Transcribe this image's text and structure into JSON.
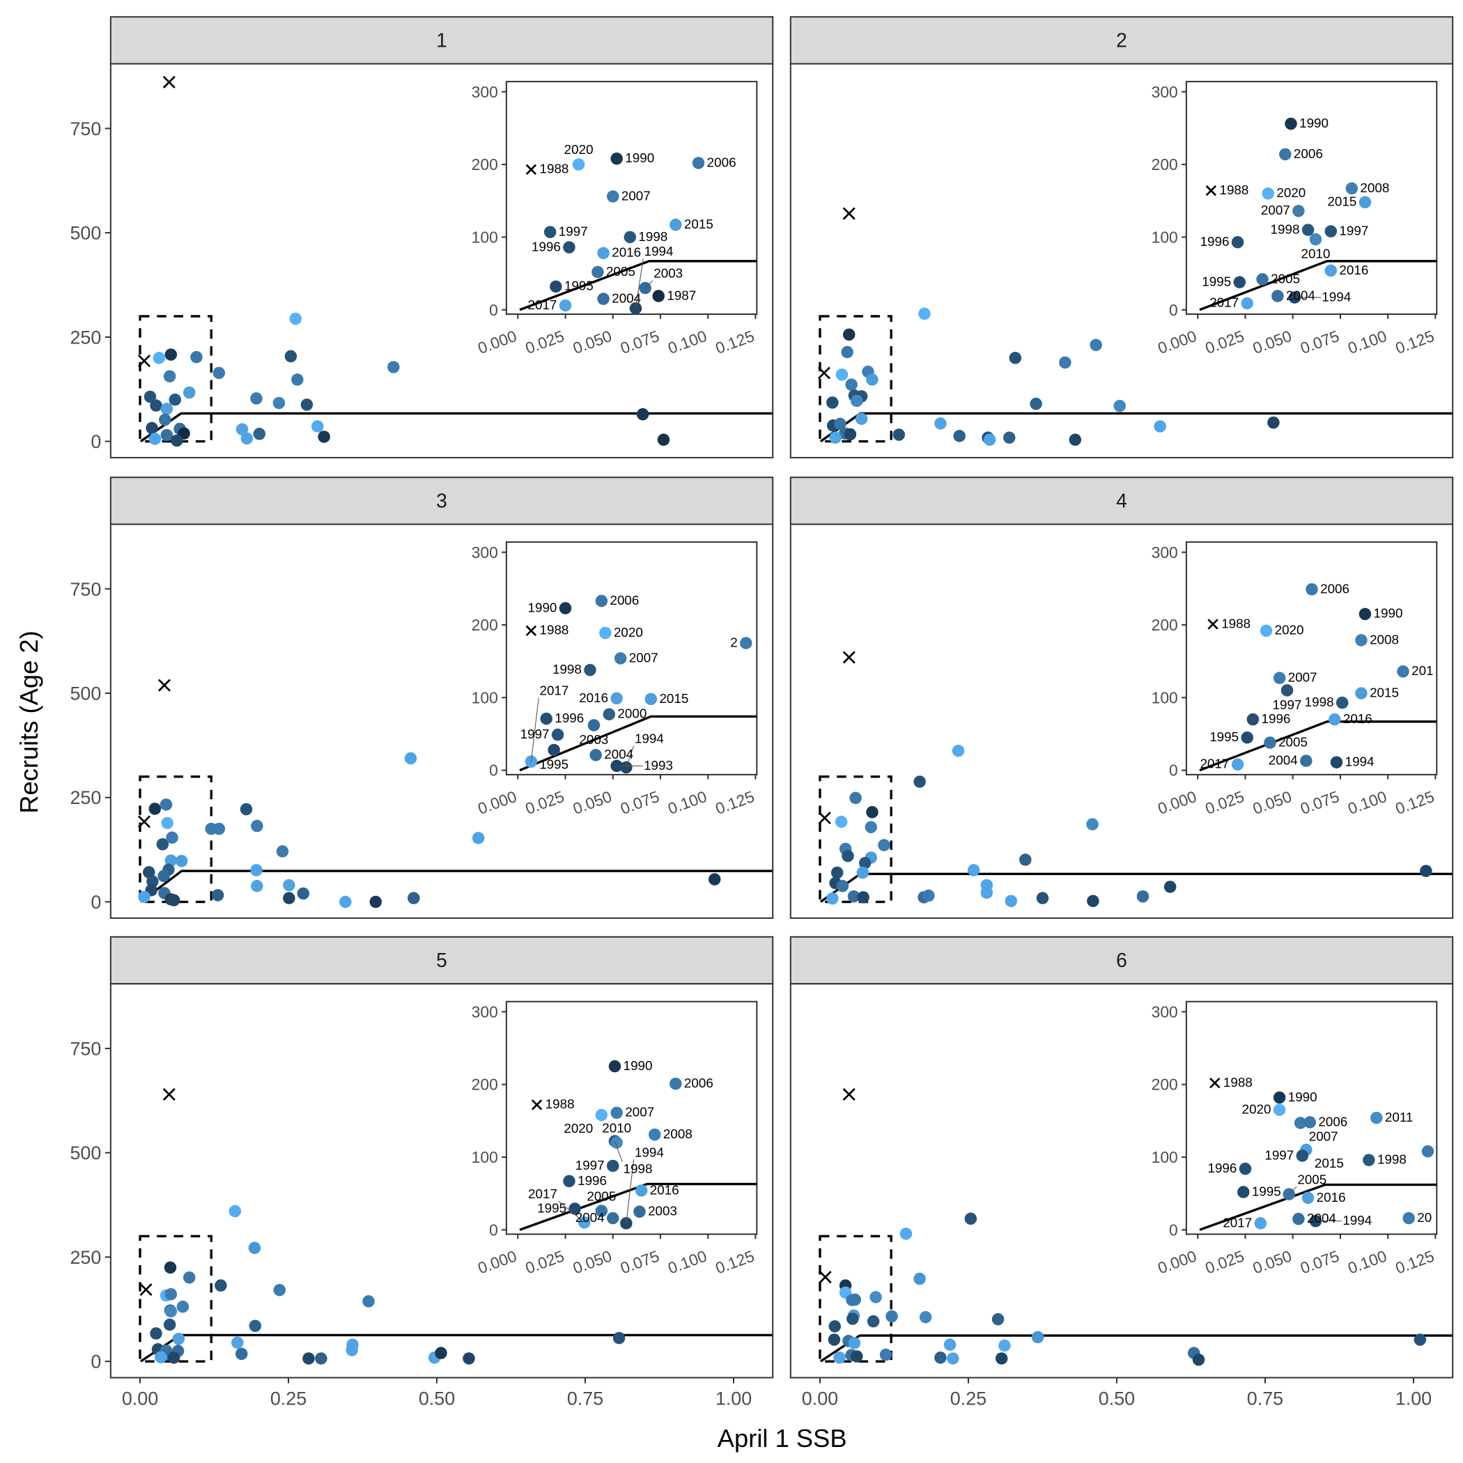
{
  "labels": {
    "xlabel": "April 1 SSB",
    "ylabel": "Recruits (Age 2)"
  },
  "colors": {
    "low": "#132B43",
    "high": "#56B1F7",
    "strip": "#D9D9D9",
    "line": "#000000"
  },
  "year_range": [
    1987,
    2020
  ],
  "main_axes": {
    "xlim": [
      -0.0495,
      1.066
    ],
    "ylim": [
      -39,
      905
    ],
    "xticks": [
      0,
      0.25,
      0.5,
      0.75,
      1.0
    ],
    "xtick_labels": [
      "0.00",
      "0.25",
      "0.50",
      "0.75",
      "1.00"
    ],
    "yticks": [
      0,
      250,
      500,
      750
    ],
    "ytick_labels": [
      "0",
      "250",
      "500",
      "750"
    ],
    "box": {
      "x": [
        0,
        0.12
      ],
      "y": [
        0,
        300
      ]
    }
  },
  "inset_axes": {
    "xlim": [
      -0.006,
      0.1257
    ],
    "ylim": [
      -6,
      314
    ],
    "xticks": [
      0,
      0.025,
      0.05,
      0.075,
      0.1,
      0.125
    ],
    "xtick_labels": [
      "0.000",
      "0.025",
      "0.050",
      "0.075",
      "0.100",
      "0.125"
    ],
    "yticks": [
      0,
      100,
      200,
      300
    ],
    "ytick_labels": [
      "0",
      "100",
      "200",
      "300"
    ]
  },
  "chart_data": [
    {
      "type": "scatter",
      "panel": "1",
      "fit_knee": [
        0.069,
        67
      ],
      "main_cross": [
        0.049,
        861
      ],
      "inset_cross": [
        "1988",
        0.007,
        193
      ],
      "inset_points": [
        [
          "2020",
          0.032,
          200
        ],
        [
          "1990",
          0.052,
          208
        ],
        [
          "2006",
          0.095,
          202
        ],
        [
          "2007",
          0.05,
          156
        ],
        [
          "2015",
          0.083,
          117
        ],
        [
          "1997",
          0.017,
          107
        ],
        [
          "1998",
          0.059,
          100
        ],
        [
          "1996",
          0.027,
          86
        ],
        [
          "2016",
          0.045,
          78
        ],
        [
          "2005",
          0.042,
          52
        ],
        [
          "1995",
          0.02,
          32
        ],
        [
          "2003",
          0.067,
          30
        ],
        [
          "1987",
          0.074,
          19
        ],
        [
          "2004",
          0.045,
          15
        ],
        [
          "2017",
          0.025,
          6
        ],
        [
          "1994",
          0.062,
          2
        ]
      ],
      "main_points": [
        [
          0.133,
          164,
          0.6
        ],
        [
          0.196,
          103,
          0.6
        ],
        [
          0.234,
          92,
          0.65
        ],
        [
          0.254,
          204,
          0.3
        ],
        [
          0.262,
          294,
          1
        ],
        [
          0.265,
          148,
          0.6
        ],
        [
          0.281,
          88,
          0.3
        ],
        [
          0.299,
          36,
          0.95
        ],
        [
          0.31,
          11,
          0.1
        ],
        [
          0.172,
          29,
          0.9
        ],
        [
          0.18,
          7,
          0.9
        ],
        [
          0.201,
          18,
          0.4
        ],
        [
          0.427,
          178,
          0.6
        ],
        [
          0.847,
          65,
          0.1
        ],
        [
          0.882,
          4,
          0.05
        ]
      ]
    },
    {
      "type": "scatter",
      "panel": "2",
      "fit_knee": [
        0.068,
        67
      ],
      "main_cross": [
        0.049,
        546
      ],
      "inset_cross": [
        "1988",
        0.007,
        164
      ],
      "inset_points": [
        [
          "1990",
          0.049,
          256
        ],
        [
          "2006",
          0.046,
          214
        ],
        [
          "2020",
          0.037,
          160
        ],
        [
          "2008",
          0.081,
          167
        ],
        [
          "2015",
          0.088,
          148
        ],
        [
          "2007",
          0.053,
          136
        ],
        [
          "1998",
          0.058,
          110
        ],
        [
          "1997",
          0.07,
          108
        ],
        [
          "2010",
          0.062,
          97
        ],
        [
          "1996",
          0.021,
          93
        ],
        [
          "2016",
          0.07,
          54
        ],
        [
          "1995",
          0.022,
          38
        ],
        [
          "2005",
          0.034,
          42
        ],
        [
          "2004",
          0.042,
          19
        ],
        [
          "1994",
          0.051,
          17
        ],
        [
          "2017",
          0.026,
          9
        ]
      ],
      "main_points": [
        [
          0.176,
          306,
          1
        ],
        [
          0.133,
          16,
          0.3
        ],
        [
          0.203,
          43,
          0.9
        ],
        [
          0.235,
          13,
          0.4
        ],
        [
          0.283,
          9,
          0.3
        ],
        [
          0.286,
          4,
          0.9
        ],
        [
          0.319,
          9,
          0.4
        ],
        [
          0.329,
          200,
          0.3
        ],
        [
          0.364,
          90,
          0.4
        ],
        [
          0.413,
          189,
          0.6
        ],
        [
          0.43,
          4,
          0.2
        ],
        [
          0.465,
          231,
          0.6
        ],
        [
          0.505,
          85,
          0.7
        ],
        [
          0.573,
          36,
          0.9
        ],
        [
          0.764,
          45,
          0.2
        ]
      ]
    },
    {
      "type": "scatter",
      "panel": "3",
      "fit_knee": [
        0.07,
        74
      ],
      "main_cross": [
        0.041,
        519
      ],
      "inset_cross": [
        "1988",
        0.007,
        192
      ],
      "inset_points": [
        [
          "1990",
          0.025,
          223
        ],
        [
          "2006",
          0.044,
          233
        ],
        [
          "2020",
          0.046,
          189
        ],
        [
          "2",
          0.12,
          175
        ],
        [
          "2007",
          0.054,
          154
        ],
        [
          "1998",
          0.038,
          138
        ],
        [
          "2016",
          0.052,
          99
        ],
        [
          "2015",
          0.07,
          98
        ],
        [
          "2000",
          0.048,
          77
        ],
        [
          "1996",
          0.015,
          71
        ],
        [
          "2003",
          0.04,
          62
        ],
        [
          "1997",
          0.021,
          49
        ],
        [
          "1995",
          0.019,
          28
        ],
        [
          "2004",
          0.041,
          21
        ],
        [
          "2017",
          0.007,
          12
        ],
        [
          "1993",
          0.052,
          6
        ],
        [
          "1994",
          0.057,
          4
        ]
      ],
      "main_points": [
        [
          0.133,
          175,
          0.6
        ],
        [
          0.131,
          16,
          0.4
        ],
        [
          0.179,
          222,
          0.3
        ],
        [
          0.197,
          182,
          0.6
        ],
        [
          0.196,
          76,
          0.9
        ],
        [
          0.197,
          38,
          0.9
        ],
        [
          0.24,
          121,
          0.6
        ],
        [
          0.251,
          40,
          0.9
        ],
        [
          0.251,
          9,
          0.2
        ],
        [
          0.275,
          20,
          0.4
        ],
        [
          0.346,
          0,
          0.9
        ],
        [
          0.397,
          0,
          0.1
        ],
        [
          0.456,
          344,
          0.9
        ],
        [
          0.461,
          9,
          0.4
        ],
        [
          0.57,
          153,
          0.9
        ],
        [
          0.968,
          54,
          0.1
        ]
      ]
    },
    {
      "type": "scatter",
      "panel": "4",
      "fit_knee": [
        0.068,
        67
      ],
      "main_cross": [
        0.049,
        586
      ],
      "inset_cross": [
        "1988",
        0.008,
        201
      ],
      "inset_points": [
        [
          "2006",
          0.06,
          249
        ],
        [
          "1990",
          0.088,
          215
        ],
        [
          "2020",
          0.036,
          192
        ],
        [
          "2008",
          0.086,
          179
        ],
        [
          "201",
          0.108,
          136
        ],
        [
          "2007",
          0.043,
          127
        ],
        [
          "1997",
          0.047,
          110
        ],
        [
          "2015",
          0.086,
          106
        ],
        [
          "1998",
          0.076,
          93
        ],
        [
          "1996",
          0.029,
          70
        ],
        [
          "2016",
          0.072,
          70
        ],
        [
          "1995",
          0.026,
          45
        ],
        [
          "2005",
          0.038,
          38
        ],
        [
          "2004",
          0.057,
          13
        ],
        [
          "1994",
          0.073,
          11
        ],
        [
          "2017",
          0.021,
          8
        ]
      ],
      "main_points": [
        [
          0.168,
          288,
          0.3
        ],
        [
          0.175,
          11,
          0.5
        ],
        [
          0.183,
          15,
          0.6
        ],
        [
          0.233,
          362,
          0.95
        ],
        [
          0.259,
          76,
          0.9
        ],
        [
          0.281,
          40,
          0.9
        ],
        [
          0.281,
          22,
          0.9
        ],
        [
          0.322,
          2,
          0.9
        ],
        [
          0.346,
          101,
          0.4
        ],
        [
          0.375,
          9,
          0.3
        ],
        [
          0.459,
          186,
          0.7
        ],
        [
          0.46,
          2,
          0.2
        ],
        [
          0.544,
          13,
          0.5
        ],
        [
          0.59,
          36,
          0.2
        ],
        [
          1.021,
          74,
          0.2
        ]
      ]
    },
    {
      "type": "scatter",
      "panel": "5",
      "fit_knee": [
        0.068,
        63
      ],
      "main_cross": [
        0.049,
        640
      ],
      "inset_cross": [
        "1988",
        0.01,
        172
      ],
      "inset_points": [
        [
          "1990",
          0.051,
          225
        ],
        [
          "2006",
          0.083,
          201
        ],
        [
          "2020",
          0.044,
          158
        ],
        [
          "2007",
          0.052,
          161
        ],
        [
          "2008",
          0.072,
          131
        ],
        [
          "1998",
          0.051,
          122
        ],
        [
          "2010",
          0.052,
          120
        ],
        [
          "1997",
          0.05,
          88
        ],
        [
          "1996",
          0.027,
          67
        ],
        [
          "2016",
          0.065,
          54
        ],
        [
          "1995",
          0.03,
          29
        ],
        [
          "2005",
          0.044,
          26
        ],
        [
          "2003",
          0.064,
          25
        ],
        [
          "2004",
          0.05,
          16
        ],
        [
          "1994",
          0.057,
          9
        ],
        [
          "2017",
          0.035,
          10
        ]
      ],
      "main_points": [
        [
          0.136,
          182,
          0.3
        ],
        [
          0.16,
          360,
          0.95
        ],
        [
          0.164,
          45,
          0.9
        ],
        [
          0.171,
          18,
          0.5
        ],
        [
          0.193,
          272,
          0.8
        ],
        [
          0.194,
          85,
          0.4
        ],
        [
          0.235,
          171,
          0.6
        ],
        [
          0.284,
          7,
          0.2
        ],
        [
          0.305,
          7,
          0.4
        ],
        [
          0.358,
          40,
          0.9
        ],
        [
          0.357,
          27,
          0.9
        ],
        [
          0.385,
          144,
          0.6
        ],
        [
          0.496,
          9,
          0.9
        ],
        [
          0.507,
          20,
          0.1
        ],
        [
          0.554,
          7,
          0.2
        ],
        [
          0.807,
          56,
          0.3
        ]
      ]
    },
    {
      "type": "scatter",
      "panel": "6",
      "fit_knee": [
        0.067,
        62
      ],
      "main_cross": [
        0.049,
        640
      ],
      "inset_cross": [
        "1988",
        0.009,
        202
      ],
      "inset_points": [
        [
          "1990",
          0.043,
          182
        ],
        [
          "2020",
          0.043,
          165
        ],
        [
          "2007",
          0.054,
          147
        ],
        [
          "2006",
          0.059,
          148
        ],
        [
          "2011",
          0.094,
          154
        ],
        [
          "2015",
          0.057,
          110
        ],
        [
          "1997",
          0.055,
          102
        ],
        [
          "1998",
          0.09,
          96
        ],
        [
          "",
          0.121,
          108
        ],
        [
          "1996",
          0.025,
          84
        ],
        [
          "1995",
          0.024,
          52
        ],
        [
          "2005",
          0.048,
          49
        ],
        [
          "2016",
          0.058,
          44
        ],
        [
          "2004",
          0.053,
          15
        ],
        [
          "1994",
          0.062,
          12
        ],
        [
          "2017",
          0.033,
          9
        ],
        [
          "20",
          0.111,
          16
        ]
      ],
      "main_points": [
        [
          0.145,
          306,
          0.95
        ],
        [
          0.168,
          198,
          0.8
        ],
        [
          0.178,
          106,
          0.7
        ],
        [
          0.203,
          9,
          0.4
        ],
        [
          0.219,
          40,
          0.9
        ],
        [
          0.224,
          7,
          0.9
        ],
        [
          0.254,
          342,
          0.3
        ],
        [
          0.3,
          101,
          0.4
        ],
        [
          0.306,
          7,
          0.2
        ],
        [
          0.311,
          38,
          0.95
        ],
        [
          0.367,
          58,
          0.8
        ],
        [
          0.63,
          20,
          0.5
        ],
        [
          0.638,
          4,
          0.2
        ],
        [
          1.011,
          52,
          0.3
        ]
      ]
    }
  ]
}
